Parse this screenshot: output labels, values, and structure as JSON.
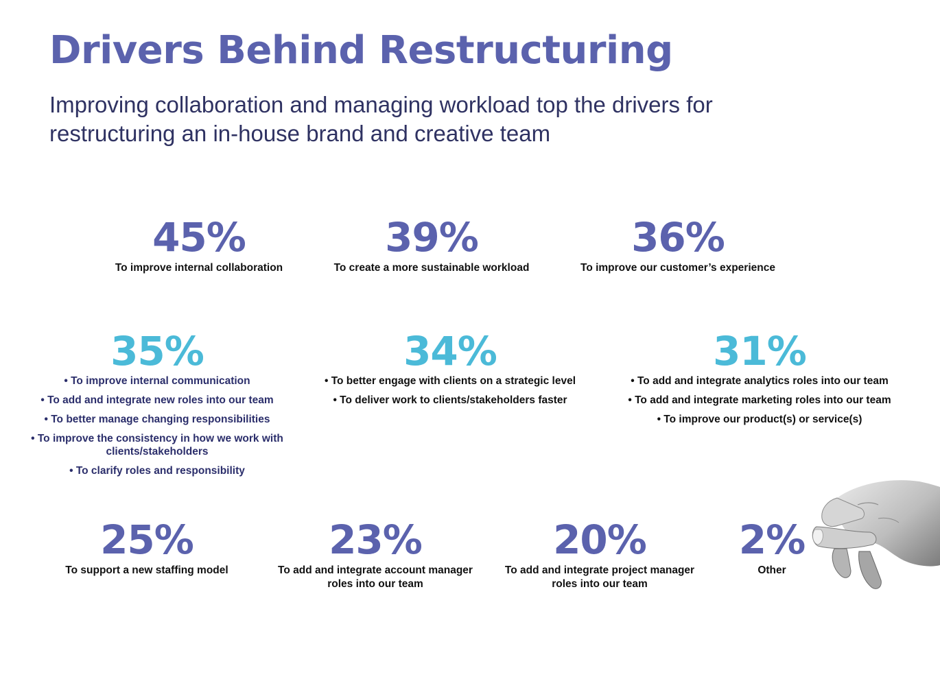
{
  "title": "Drivers Behind Restructuring",
  "subtitle": "Improving collaboration and managing workload top the drivers for restructuring an in-house brand and creative team",
  "colors": {
    "primary": "#5b62ad",
    "secondary": "#4bbad8",
    "text": "#111111",
    "navy": "#2b2e6b"
  },
  "stats": {
    "s45": {
      "value": "45%",
      "label": "To improve internal collaboration"
    },
    "s39": {
      "value": "39%",
      "label": "To create a more sustainable workload"
    },
    "s36": {
      "value": "36%",
      "label": "To improve our customer’s experience"
    },
    "s35": {
      "value": "35%",
      "bullets": [
        "• To improve internal communication",
        "• To add and integrate new roles into our team",
        "• To better manage changing responsibilities",
        "• To improve the consistency in how we work with clients/stakeholders",
        "• To clarify roles and responsibility"
      ]
    },
    "s34": {
      "value": "34%",
      "bullets": [
        "• To better engage with clients on a strategic level",
        "• To deliver work to clients/stakeholders faster"
      ]
    },
    "s31": {
      "value": "31%",
      "bullets": [
        "• To add and integrate analytics roles into our team",
        "• To add and integrate marketing roles into our team",
        "• To improve our product(s) or service(s)"
      ]
    },
    "s25": {
      "value": "25%",
      "label": "To support a new staffing model"
    },
    "s23": {
      "value": "23%",
      "label": "To add and integrate account manager roles into our team"
    },
    "s20": {
      "value": "20%",
      "label": "To add and integrate project manager roles into our team"
    },
    "s2": {
      "value": "2%",
      "label": "Other"
    }
  }
}
